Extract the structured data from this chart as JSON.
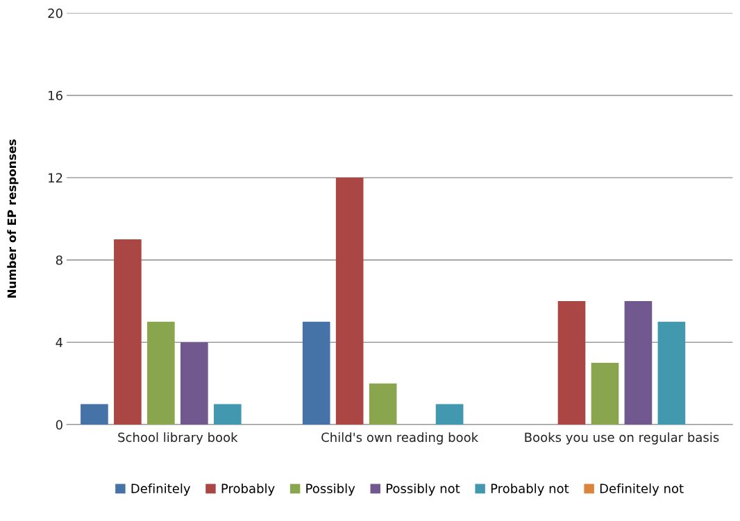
{
  "chart_data": {
    "type": "bar",
    "ylabel": "Number of EP responses",
    "categories": [
      "School library book",
      "Child's own reading book",
      "Books you use on regular basis"
    ],
    "series": [
      {
        "name": "Definitely",
        "color": "#4572a7",
        "values": [
          1,
          5,
          0
        ]
      },
      {
        "name": "Probably",
        "color": "#aa4643",
        "values": [
          9,
          12,
          6
        ]
      },
      {
        "name": "Possibly",
        "color": "#89a54e",
        "values": [
          5,
          2,
          3
        ]
      },
      {
        "name": "Possibly not",
        "color": "#71588f",
        "values": [
          4,
          0,
          6
        ]
      },
      {
        "name": "Probably not",
        "color": "#4198af",
        "values": [
          1,
          1,
          5
        ]
      },
      {
        "name": "Definitely not",
        "color": "#db843d",
        "values": [
          0,
          0,
          0
        ]
      }
    ],
    "ylim": [
      0,
      20
    ],
    "yticks": [
      0,
      4,
      8,
      12,
      16,
      20
    ],
    "grid": "y",
    "legend": "bottom"
  }
}
